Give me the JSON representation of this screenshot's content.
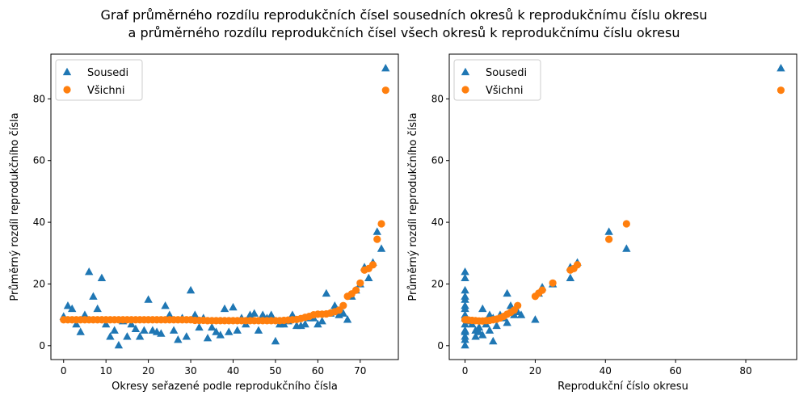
{
  "figure": {
    "title_line1": "Graf průměrného rozdílu reprodukčních čísel sousedních okresů k reprodukčnímu číslu okresu",
    "title_line2": "a průměrného rozdílu reprodukčních čísel všech okresů k reprodukčnímu číslu okresu"
  },
  "colors": {
    "sousedi": "#1f77b4",
    "vsichni": "#ff7f0e"
  },
  "chart_data": [
    {
      "type": "scatter",
      "xlabel": "Okresy seřazené podle reprodukčního čísla",
      "ylabel": "Průměrný rozdíl reprodukčního čísla",
      "xlim": [
        -3,
        79
      ],
      "ylim": [
        -4.5,
        94.5
      ],
      "xticks": [
        0,
        10,
        20,
        30,
        40,
        50,
        60,
        70
      ],
      "yticks": [
        0,
        20,
        40,
        60,
        80
      ],
      "grid": false,
      "legend_position": "top-left",
      "series": [
        {
          "name": "Sousedi",
          "marker": "triangle",
          "points": [
            [
              0,
              9.5
            ],
            [
              1,
              13
            ],
            [
              2,
              12
            ],
            [
              3,
              7
            ],
            [
              4,
              4.5
            ],
            [
              5,
              10
            ],
            [
              6,
              24
            ],
            [
              7,
              16
            ],
            [
              8,
              12
            ],
            [
              9,
              22
            ],
            [
              10,
              7
            ],
            [
              11,
              3
            ],
            [
              12,
              5
            ],
            [
              13,
              0.2
            ],
            [
              14,
              8
            ],
            [
              15,
              3
            ],
            [
              16,
              7
            ],
            [
              17,
              5.5
            ],
            [
              18,
              3
            ],
            [
              19,
              5
            ],
            [
              20,
              15
            ],
            [
              21,
              5
            ],
            [
              22,
              4.5
            ],
            [
              23,
              4
            ],
            [
              24,
              13
            ],
            [
              25,
              10
            ],
            [
              26,
              5
            ],
            [
              27,
              2
            ],
            [
              28,
              9
            ],
            [
              29,
              3
            ],
            [
              30,
              18
            ],
            [
              31,
              10
            ],
            [
              32,
              6
            ],
            [
              33,
              9
            ],
            [
              34,
              2.5
            ],
            [
              35,
              6
            ],
            [
              36,
              4.5
            ],
            [
              37,
              3.5
            ],
            [
              38,
              12
            ],
            [
              39,
              4.5
            ],
            [
              40,
              12.5
            ],
            [
              41,
              5
            ],
            [
              42,
              9
            ],
            [
              43,
              7
            ],
            [
              44,
              10
            ],
            [
              45,
              10.5
            ],
            [
              46,
              5
            ],
            [
              47,
              10
            ],
            [
              48,
              9
            ],
            [
              49,
              10
            ],
            [
              50,
              1.5
            ],
            [
              51,
              7
            ],
            [
              52,
              7
            ],
            [
              53,
              8
            ],
            [
              54,
              10
            ],
            [
              55,
              6.5
            ],
            [
              56,
              6.5
            ],
            [
              57,
              7
            ],
            [
              58,
              9
            ],
            [
              59,
              9
            ],
            [
              60,
              7
            ],
            [
              61,
              8
            ],
            [
              62,
              17
            ],
            [
              63,
              10.5
            ],
            [
              64,
              13
            ],
            [
              65,
              10
            ],
            [
              66,
              10.5
            ],
            [
              67,
              8.5
            ],
            [
              68,
              16
            ],
            [
              69,
              18
            ],
            [
              70,
              20
            ],
            [
              71,
              25.5
            ],
            [
              72,
              22
            ],
            [
              73,
              27
            ],
            [
              74,
              37
            ],
            [
              75,
              31.5
            ],
            [
              76,
              90
            ]
          ]
        },
        {
          "name": "Všichni",
          "marker": "circle",
          "points": [
            [
              0,
              8.4
            ],
            [
              1,
              8.4
            ],
            [
              2,
              8.4
            ],
            [
              3,
              8.4
            ],
            [
              4,
              8.4
            ],
            [
              5,
              8.4
            ],
            [
              6,
              8.4
            ],
            [
              7,
              8.4
            ],
            [
              8,
              8.4
            ],
            [
              9,
              8.4
            ],
            [
              10,
              8.4
            ],
            [
              11,
              8.4
            ],
            [
              12,
              8.4
            ],
            [
              13,
              8.4
            ],
            [
              14,
              8.4
            ],
            [
              15,
              8.4
            ],
            [
              16,
              8.4
            ],
            [
              17,
              8.4
            ],
            [
              18,
              8.4
            ],
            [
              19,
              8.4
            ],
            [
              20,
              8.4
            ],
            [
              21,
              8.4
            ],
            [
              22,
              8.4
            ],
            [
              23,
              8.4
            ],
            [
              24,
              8.4
            ],
            [
              25,
              8.4
            ],
            [
              26,
              8.4
            ],
            [
              27,
              8.4
            ],
            [
              28,
              8.4
            ],
            [
              29,
              8.4
            ],
            [
              30,
              8.4
            ],
            [
              31,
              8.2
            ],
            [
              32,
              8.2
            ],
            [
              33,
              8.2
            ],
            [
              34,
              8.1
            ],
            [
              35,
              8.1
            ],
            [
              36,
              8.1
            ],
            [
              37,
              8.1
            ],
            [
              38,
              8.1
            ],
            [
              39,
              8.1
            ],
            [
              40,
              8.1
            ],
            [
              41,
              8.1
            ],
            [
              42,
              8.1
            ],
            [
              43,
              8.1
            ],
            [
              44,
              8.1
            ],
            [
              45,
              8.1
            ],
            [
              46,
              8.1
            ],
            [
              47,
              8.1
            ],
            [
              48,
              8.1
            ],
            [
              49,
              8.1
            ],
            [
              50,
              8.1
            ],
            [
              51,
              8.1
            ],
            [
              52,
              8.2
            ],
            [
              53,
              8.3
            ],
            [
              54,
              8.4
            ],
            [
              55,
              8.5
            ],
            [
              56,
              8.8
            ],
            [
              57,
              9.2
            ],
            [
              58,
              9.5
            ],
            [
              59,
              10
            ],
            [
              60,
              10.2
            ],
            [
              61,
              10.2
            ],
            [
              62,
              10.3
            ],
            [
              63,
              10.6
            ],
            [
              64,
              11
            ],
            [
              65,
              11.5
            ],
            [
              66,
              13
            ],
            [
              67,
              16
            ],
            [
              68,
              16.8
            ],
            [
              69,
              18
            ],
            [
              70,
              20.3
            ],
            [
              71,
              24.5
            ],
            [
              72,
              25
            ],
            [
              73,
              26.2
            ],
            [
              74,
              34.5
            ],
            [
              75,
              39.5
            ],
            [
              76,
              82.8
            ]
          ]
        }
      ]
    },
    {
      "type": "scatter",
      "xlabel": "Reprodukční číslo okresu",
      "ylabel": "Průměrný rozdíl reprodukčního čísla",
      "xlim": [
        -4.5,
        94.5
      ],
      "ylim": [
        -4.5,
        94.5
      ],
      "xticks": [
        0,
        20,
        40,
        60,
        80
      ],
      "yticks": [
        0,
        20,
        40,
        60,
        80
      ],
      "grid": false,
      "legend_position": "top-left",
      "series": [
        {
          "name": "Sousedi",
          "marker": "triangle",
          "points": [
            [
              0,
              24
            ],
            [
              0,
              22
            ],
            [
              0,
              18
            ],
            [
              0,
              16
            ],
            [
              0,
              15
            ],
            [
              0,
              13
            ],
            [
              0,
              12
            ],
            [
              0,
              10
            ],
            [
              0,
              9
            ],
            [
              0,
              7
            ],
            [
              0,
              5
            ],
            [
              0,
              4.5
            ],
            [
              0,
              3
            ],
            [
              0,
              2
            ],
            [
              0,
              0.2
            ],
            [
              1,
              8
            ],
            [
              2,
              7
            ],
            [
              3,
              5
            ],
            [
              3,
              3
            ],
            [
              4,
              6
            ],
            [
              4,
              4.5
            ],
            [
              5,
              12
            ],
            [
              5,
              3.5
            ],
            [
              6,
              7
            ],
            [
              7,
              10
            ],
            [
              7,
              5
            ],
            [
              8,
              1.5
            ],
            [
              8,
              9
            ],
            [
              9,
              6.5
            ],
            [
              10,
              10
            ],
            [
              11,
              9
            ],
            [
              12,
              17
            ],
            [
              12,
              7.5
            ],
            [
              13,
              13
            ],
            [
              14,
              10
            ],
            [
              15,
              11
            ],
            [
              16,
              10
            ],
            [
              20,
              8.5
            ],
            [
              21,
              17
            ],
            [
              22,
              19
            ],
            [
              25,
              20
            ],
            [
              30,
              25.5
            ],
            [
              30,
              22
            ],
            [
              32,
              27
            ],
            [
              41,
              37
            ],
            [
              46,
              31.5
            ],
            [
              90,
              90
            ]
          ]
        },
        {
          "name": "Všichni",
          "marker": "circle",
          "points": [
            [
              0,
              8.4
            ],
            [
              0.5,
              8.4
            ],
            [
              1,
              8.3
            ],
            [
              2,
              8.2
            ],
            [
              3,
              8.1
            ],
            [
              4,
              8
            ],
            [
              5,
              8
            ],
            [
              6,
              8.1
            ],
            [
              7,
              8.2
            ],
            [
              8,
              8.4
            ],
            [
              9,
              8.6
            ],
            [
              10,
              9
            ],
            [
              11,
              9.5
            ],
            [
              12,
              10.2
            ],
            [
              13,
              10.8
            ],
            [
              14,
              11.5
            ],
            [
              15,
              13
            ],
            [
              20,
              16
            ],
            [
              21,
              17
            ],
            [
              22,
              18
            ],
            [
              25,
              20.3
            ],
            [
              30,
              24.5
            ],
            [
              31,
              25
            ],
            [
              32,
              26.2
            ],
            [
              41,
              34.5
            ],
            [
              46,
              39.5
            ],
            [
              90,
              82.8
            ]
          ]
        }
      ]
    }
  ]
}
